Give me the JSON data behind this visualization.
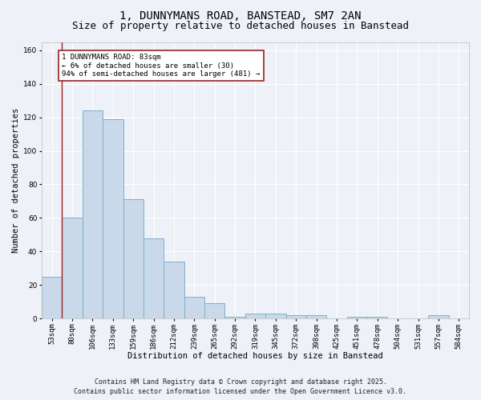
{
  "title1": "1, DUNNYMANS ROAD, BANSTEAD, SM7 2AN",
  "title2": "Size of property relative to detached houses in Banstead",
  "xlabel": "Distribution of detached houses by size in Banstead",
  "ylabel": "Number of detached properties",
  "categories": [
    "53sqm",
    "80sqm",
    "106sqm",
    "133sqm",
    "159sqm",
    "186sqm",
    "212sqm",
    "239sqm",
    "265sqm",
    "292sqm",
    "319sqm",
    "345sqm",
    "372sqm",
    "398sqm",
    "425sqm",
    "451sqm",
    "478sqm",
    "504sqm",
    "531sqm",
    "557sqm",
    "584sqm"
  ],
  "values": [
    25,
    60,
    124,
    119,
    71,
    48,
    34,
    13,
    9,
    1,
    3,
    3,
    2,
    2,
    0,
    1,
    1,
    0,
    0,
    2,
    0
  ],
  "bar_color": "#c9d9ea",
  "bar_edge_color": "#7fafc8",
  "vline_color": "#992222",
  "vline_x_idx": 1,
  "annotation_text": "1 DUNNYMANS ROAD: 83sqm\n← 6% of detached houses are smaller (30)\n94% of semi-detached houses are larger (481) →",
  "annotation_box_color": "#ffffff",
  "annotation_box_edge": "#992222",
  "ylim": [
    0,
    165
  ],
  "yticks": [
    0,
    20,
    40,
    60,
    80,
    100,
    120,
    140,
    160
  ],
  "footer1": "Contains HM Land Registry data © Crown copyright and database right 2025.",
  "footer2": "Contains public sector information licensed under the Open Government Licence v3.0.",
  "bg_color": "#eef2f8",
  "grid_color": "#ffffff",
  "title1_fontsize": 10,
  "title2_fontsize": 9,
  "axis_label_fontsize": 7.5,
  "tick_fontsize": 6.5,
  "annotation_fontsize": 6.5,
  "footer_fontsize": 6.0
}
